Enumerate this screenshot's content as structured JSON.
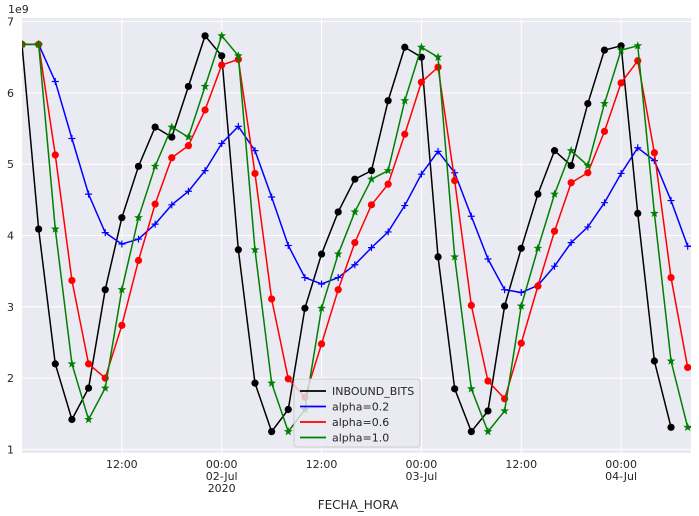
{
  "chart_data": {
    "type": "line",
    "xlabel": "FECHA_HORA",
    "y_offset_label": "1e9",
    "ylim": [
      0.95,
      7.05
    ],
    "y_ticks": [
      1,
      2,
      3,
      4,
      5,
      6,
      7
    ],
    "x_range_hours": [
      0,
      80.4
    ],
    "x_ticks": [
      {
        "h": 12,
        "lines": [
          "12:00"
        ]
      },
      {
        "h": 24,
        "lines": [
          "00:00",
          "02-Jul",
          "2020"
        ]
      },
      {
        "h": 36,
        "lines": [
          "12:00"
        ]
      },
      {
        "h": 48,
        "lines": [
          "00:00",
          "03-Jul"
        ]
      },
      {
        "h": 60,
        "lines": [
          "12:00"
        ]
      },
      {
        "h": 72,
        "lines": [
          "00:00",
          "04-Jul"
        ]
      }
    ],
    "background": "#eaeaf2",
    "legend_position": "lower center",
    "series": [
      {
        "name": "INBOUND_BITS",
        "color": "#000000",
        "marker": "circle",
        "points": [
          [
            0,
            6.68
          ],
          [
            2,
            4.09
          ],
          [
            4,
            2.2
          ],
          [
            6,
            1.42
          ],
          [
            8,
            1.86
          ],
          [
            10,
            3.24
          ],
          [
            12,
            4.25
          ],
          [
            14,
            4.97
          ],
          [
            16,
            5.52
          ],
          [
            18,
            5.38
          ],
          [
            20,
            6.09
          ],
          [
            22,
            6.8
          ],
          [
            24,
            6.52
          ],
          [
            26,
            3.8
          ],
          [
            28,
            1.93
          ],
          [
            30,
            1.25
          ],
          [
            32,
            1.56
          ],
          [
            34,
            2.98
          ],
          [
            36,
            3.74
          ],
          [
            38,
            4.33
          ],
          [
            40,
            4.79
          ],
          [
            42,
            4.91
          ],
          [
            44,
            5.89
          ],
          [
            46,
            6.64
          ],
          [
            48,
            6.5
          ],
          [
            50,
            3.7
          ],
          [
            52,
            1.85
          ],
          [
            54,
            1.25
          ],
          [
            56,
            1.54
          ],
          [
            58,
            3.01
          ],
          [
            60,
            3.82
          ],
          [
            62,
            4.58
          ],
          [
            64,
            5.19
          ],
          [
            66,
            4.98
          ],
          [
            68,
            5.85
          ],
          [
            70,
            6.6
          ],
          [
            72,
            6.66
          ],
          [
            74,
            4.31
          ],
          [
            76,
            2.24
          ],
          [
            78,
            1.31
          ]
        ]
      },
      {
        "name": "alpha=0.2",
        "color": "#0000ff",
        "marker": "plus",
        "points": [
          [
            0,
            6.68
          ],
          [
            2,
            6.68
          ],
          [
            4,
            6.16
          ],
          [
            6,
            5.36
          ],
          [
            8,
            4.58
          ],
          [
            10,
            4.04
          ],
          [
            12,
            3.88
          ],
          [
            14,
            3.95
          ],
          [
            16,
            4.16
          ],
          [
            18,
            4.43
          ],
          [
            20,
            4.62
          ],
          [
            22,
            4.91
          ],
          [
            24,
            5.29
          ],
          [
            26,
            5.53
          ],
          [
            28,
            5.19
          ],
          [
            30,
            4.54
          ],
          [
            32,
            3.86
          ],
          [
            34,
            3.41
          ],
          [
            36,
            3.32
          ],
          [
            38,
            3.41
          ],
          [
            40,
            3.59
          ],
          [
            42,
            3.83
          ],
          [
            44,
            4.05
          ],
          [
            46,
            4.42
          ],
          [
            48,
            4.86
          ],
          [
            50,
            5.18
          ],
          [
            52,
            4.88
          ],
          [
            54,
            4.27
          ],
          [
            56,
            3.67
          ],
          [
            58,
            3.24
          ],
          [
            60,
            3.2
          ],
          [
            62,
            3.3
          ],
          [
            64,
            3.57
          ],
          [
            66,
            3.9
          ],
          [
            68,
            4.12
          ],
          [
            70,
            4.46
          ],
          [
            72,
            4.87
          ],
          [
            74,
            5.23
          ],
          [
            76,
            5.05
          ],
          [
            78,
            4.49
          ],
          [
            80,
            3.85
          ],
          [
            82,
            3.85
          ]
        ]
      },
      {
        "name": "alpha=0.6",
        "color": "#ff0000",
        "marker": "circle",
        "points": [
          [
            0,
            6.68
          ],
          [
            2,
            6.68
          ],
          [
            4,
            5.13
          ],
          [
            6,
            3.37
          ],
          [
            8,
            2.2
          ],
          [
            10,
            2.0
          ],
          [
            12,
            2.74
          ],
          [
            14,
            3.65
          ],
          [
            16,
            4.44
          ],
          [
            18,
            5.09
          ],
          [
            20,
            5.26
          ],
          [
            22,
            5.76
          ],
          [
            24,
            6.39
          ],
          [
            26,
            6.47
          ],
          [
            28,
            4.87
          ],
          [
            30,
            3.11
          ],
          [
            32,
            1.99
          ],
          [
            34,
            1.73
          ],
          [
            36,
            2.48
          ],
          [
            38,
            3.24
          ],
          [
            40,
            3.9
          ],
          [
            42,
            4.43
          ],
          [
            44,
            4.72
          ],
          [
            46,
            5.42
          ],
          [
            48,
            6.15
          ],
          [
            50,
            6.36
          ],
          [
            52,
            4.77
          ],
          [
            54,
            3.02
          ],
          [
            56,
            1.96
          ],
          [
            58,
            1.71
          ],
          [
            60,
            2.49
          ],
          [
            62,
            3.29
          ],
          [
            64,
            4.06
          ],
          [
            66,
            4.74
          ],
          [
            68,
            4.88
          ],
          [
            70,
            5.46
          ],
          [
            72,
            6.14
          ],
          [
            74,
            6.45
          ],
          [
            76,
            5.16
          ],
          [
            78,
            3.41
          ],
          [
            80,
            2.15
          ],
          [
            82,
            2.15
          ]
        ]
      },
      {
        "name": "alpha=1.0",
        "color": "#008000",
        "marker": "star",
        "points": [
          [
            0,
            6.68
          ],
          [
            2,
            6.68
          ],
          [
            4,
            4.09
          ],
          [
            6,
            2.2
          ],
          [
            8,
            1.42
          ],
          [
            10,
            1.86
          ],
          [
            12,
            3.24
          ],
          [
            14,
            4.25
          ],
          [
            16,
            4.97
          ],
          [
            18,
            5.52
          ],
          [
            20,
            5.38
          ],
          [
            22,
            6.09
          ],
          [
            24,
            6.8
          ],
          [
            26,
            6.52
          ],
          [
            28,
            3.8
          ],
          [
            30,
            1.93
          ],
          [
            32,
            1.25
          ],
          [
            34,
            1.56
          ],
          [
            36,
            2.98
          ],
          [
            38,
            3.74
          ],
          [
            40,
            4.33
          ],
          [
            42,
            4.79
          ],
          [
            44,
            4.91
          ],
          [
            46,
            5.89
          ],
          [
            48,
            6.64
          ],
          [
            50,
            6.5
          ],
          [
            52,
            3.7
          ],
          [
            54,
            1.85
          ],
          [
            56,
            1.25
          ],
          [
            58,
            1.54
          ],
          [
            60,
            3.01
          ],
          [
            62,
            3.82
          ],
          [
            64,
            4.58
          ],
          [
            66,
            5.19
          ],
          [
            68,
            4.98
          ],
          [
            70,
            5.85
          ],
          [
            72,
            6.6
          ],
          [
            74,
            6.66
          ],
          [
            76,
            4.31
          ],
          [
            78,
            2.24
          ],
          [
            80,
            1.31
          ],
          [
            82,
            1.31
          ]
        ]
      }
    ]
  }
}
